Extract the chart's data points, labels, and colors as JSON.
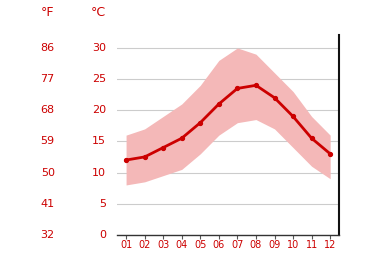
{
  "months": [
    1,
    2,
    3,
    4,
    5,
    6,
    7,
    8,
    9,
    10,
    11,
    12
  ],
  "mean_temp_c": [
    12,
    12.5,
    14,
    15.5,
    18,
    21,
    23.5,
    24,
    22,
    19,
    15.5,
    13
  ],
  "max_temp_c": [
    16,
    17,
    19,
    21,
    24,
    28,
    30,
    29,
    26,
    23,
    19,
    16
  ],
  "min_temp_c": [
    8,
    8.5,
    9.5,
    10.5,
    13,
    16,
    18,
    18.5,
    17,
    14,
    11,
    9
  ],
  "line_color": "#cc0000",
  "band_color": "#f4b8b8",
  "background_color": "#ffffff",
  "grid_color": "#cccccc",
  "axis_label_color": "#cc0000",
  "left_labels_f": [
    "86",
    "77",
    "68",
    "59",
    "50",
    "41",
    "32"
  ],
  "left_labels_c": [
    "30",
    "25",
    "20",
    "15",
    "10",
    "5",
    "0"
  ],
  "left_ticks_c": [
    30,
    25,
    20,
    15,
    10,
    5,
    0
  ],
  "ylim": [
    0,
    32
  ],
  "xlim": [
    0.5,
    12.5
  ],
  "label_f": "°F",
  "label_c": "°C"
}
